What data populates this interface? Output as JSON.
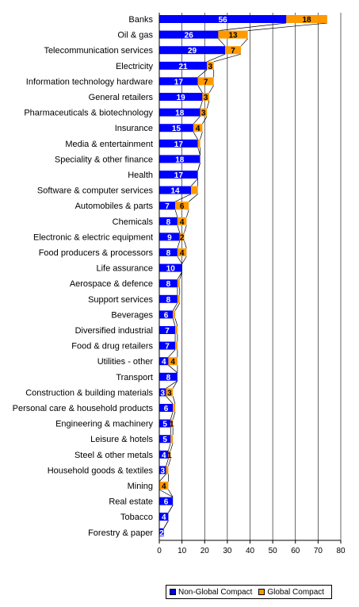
{
  "chart_data": {
    "type": "bar",
    "orientation": "horizontal",
    "stacked": true,
    "categories": [
      "Banks",
      "Oil & gas",
      "Telecommunication services",
      "Electricity",
      "Information technology hardware",
      "General retailers",
      "Pharmaceuticals & biotechnology",
      "Insurance",
      "Media & entertainment",
      "Speciality & other finance",
      "Health",
      "Software & computer services",
      "Automobiles & parts",
      "Chemicals",
      "Electronic & electric equipment",
      "Food producers & processors",
      "Life assurance",
      "Aerospace & defence",
      "Support services",
      "Beverages",
      "Diversified industrial",
      "Food & drug retailers",
      "Utilities - other",
      "Transport",
      "Construction & building materials",
      "Personal care & household products",
      "Engineering & machinery",
      "Leisure & hotels",
      "Steel & other metals",
      "Household goods & textiles",
      "Mining",
      "Real estate",
      "Tobacco",
      "Forestry & paper"
    ],
    "series": [
      {
        "name": "Non-Global Compact",
        "color": "#0000ff",
        "values": [
          56,
          26,
          29,
          21,
          17,
          19,
          18,
          15,
          17,
          18,
          17,
          14,
          7,
          8,
          9,
          8,
          10,
          8,
          8,
          6,
          7,
          7,
          4,
          8,
          3,
          6,
          5,
          5,
          4,
          3,
          0,
          6,
          4,
          2
        ]
      },
      {
        "name": "Global Compact",
        "color": "#ff9900",
        "values": [
          18,
          13,
          7,
          3,
          7,
          3,
          3,
          4,
          1,
          0,
          0,
          3,
          6,
          4,
          2,
          4,
          0,
          1,
          1,
          1,
          1,
          1,
          4,
          0,
          3,
          1,
          1,
          1,
          1,
          1,
          4,
          0,
          0,
          0
        ]
      }
    ],
    "value_labels": [
      [
        "56",
        "18"
      ],
      [
        "26",
        "13"
      ],
      [
        "29",
        "7"
      ],
      [
        "21",
        "3"
      ],
      [
        "17",
        "7"
      ],
      [
        "19",
        "3"
      ],
      [
        "18",
        "3"
      ],
      [
        "15",
        "4"
      ],
      [
        "17",
        ""
      ],
      [
        "18",
        ""
      ],
      [
        "17",
        ""
      ],
      [
        "14",
        ""
      ],
      [
        "7",
        "6"
      ],
      [
        "8",
        "4"
      ],
      [
        "9",
        "2"
      ],
      [
        "8",
        "4"
      ],
      [
        "10",
        ""
      ],
      [
        "8",
        ""
      ],
      [
        "8",
        ""
      ],
      [
        "6",
        ""
      ],
      [
        "7",
        ""
      ],
      [
        "7",
        ""
      ],
      [
        "4",
        "4"
      ],
      [
        "8",
        ""
      ],
      [
        "3",
        "3"
      ],
      [
        "6",
        ""
      ],
      [
        "5",
        "1"
      ],
      [
        "5",
        ""
      ],
      [
        "4",
        "1"
      ],
      [
        "3",
        ""
      ],
      [
        "",
        "4"
      ],
      [
        "6",
        ""
      ],
      [
        "4",
        ""
      ],
      [
        "2",
        ""
      ]
    ],
    "x_ticks": [
      "0",
      "10",
      "20",
      "30",
      "40",
      "50",
      "60",
      "70",
      "80"
    ],
    "xlim": [
      0,
      80
    ],
    "grid": "vertical",
    "legend_position": "bottom",
    "connector_lines": true
  }
}
